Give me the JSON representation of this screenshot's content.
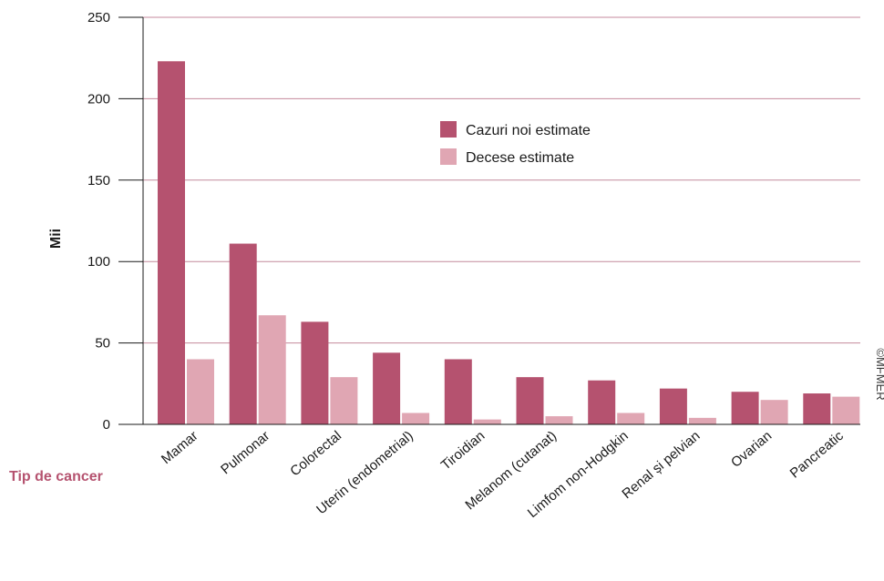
{
  "chart_data": {
    "type": "bar",
    "title": "",
    "ylabel": "Mii",
    "xlabel": "Tip de cancer",
    "ylim": [
      0,
      250
    ],
    "yticks": [
      0,
      50,
      100,
      150,
      200,
      250
    ],
    "grid": true,
    "legend_position": "top-center",
    "categories": [
      "Mamar",
      "Pulmonar",
      "Colorectal",
      "Uterin (endometrial)",
      "Tiroidian",
      "Melanom (cutanat)",
      "Limfom non-Hodgkin",
      "Renal și pelvian",
      "Ovarian",
      "Pancreatic"
    ],
    "series": [
      {
        "name": "Cazuri noi estimate",
        "color": "#b5526f",
        "values": [
          223,
          111,
          63,
          44,
          40,
          29,
          27,
          22,
          20,
          19
        ]
      },
      {
        "name": "Decese estimate",
        "color": "#e0a6b3",
        "values": [
          40,
          67,
          29,
          7,
          3,
          5,
          7,
          4,
          15,
          17
        ]
      }
    ],
    "colors": {
      "grid": "#c48a9c",
      "axis": "#1a1a1a",
      "xlabel": "#b5526f"
    },
    "credit": "©MFMER"
  }
}
